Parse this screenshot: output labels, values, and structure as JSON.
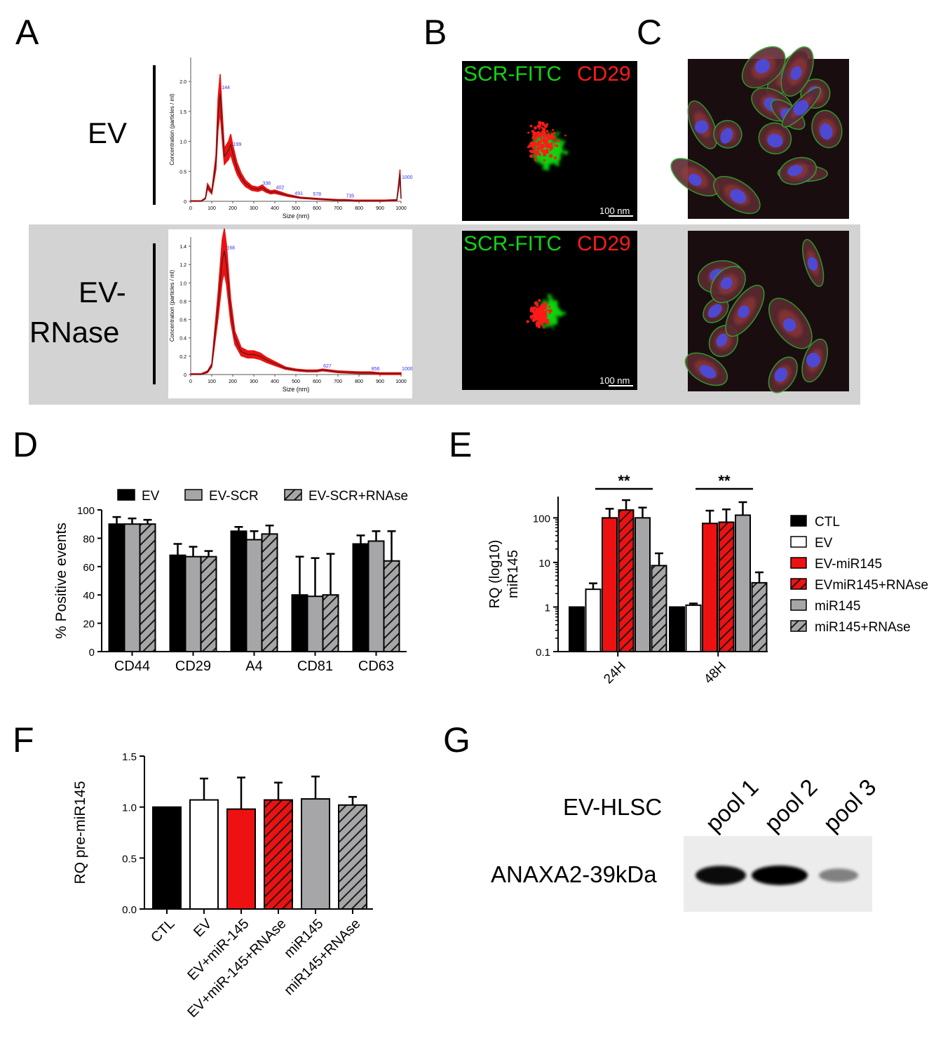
{
  "panel_letters": [
    "A",
    "B",
    "C",
    "D",
    "E",
    "F",
    "G"
  ],
  "panel_a": {
    "rows": [
      {
        "label_lines": [
          "EV"
        ]
      },
      {
        "label_lines": [
          "EV-",
          "RNase"
        ]
      }
    ],
    "micro_label_left": "SCR-FITC",
    "micro_label_right": "CD29",
    "scale_bar": "100 nm"
  },
  "colors": {
    "black": "#000000",
    "white": "#ffffff",
    "red": "#ee1111",
    "gray": "#a6a6a8",
    "panel_bg": "#d3d3d3",
    "fitc_green": "#12d312",
    "cd29_red": "#ff1a1a"
  },
  "panel_g": {
    "row_label": "EV-HLSC",
    "band_label": "ANAXA2-39kDa",
    "lanes": [
      "pool 1",
      "pool 2",
      "pool 3"
    ],
    "band_intensity": [
      0.95,
      1.0,
      0.45
    ]
  },
  "chart_data": [
    {
      "id": "A-EV",
      "type": "line",
      "xlabel": "Size (nm)",
      "ylabel": "Concentration (particles / ml)",
      "xlim": [
        0,
        1000
      ],
      "ylim": [
        0,
        2.4
      ],
      "xticks": [
        0,
        100,
        200,
        300,
        400,
        500,
        600,
        700,
        800,
        900,
        1000
      ],
      "yticks": [
        0,
        0.5,
        1.0,
        1.5,
        2.0
      ],
      "ytick_labels": [
        "0",
        "0.5",
        "1.0",
        "1.5",
        "2.0"
      ],
      "x": [
        0,
        50,
        70,
        80,
        100,
        120,
        130,
        140,
        150,
        160,
        180,
        190,
        200,
        220,
        240,
        260,
        290,
        320,
        340,
        360,
        380,
        400,
        430,
        460,
        490,
        520,
        560,
        600,
        650,
        700,
        735,
        780,
        850,
        920,
        980,
        990,
        995,
        1000
      ],
      "y": [
        0,
        0,
        0.05,
        0.25,
        0.15,
        0.65,
        1.45,
        1.8,
        1.25,
        0.75,
        0.85,
        0.95,
        0.8,
        0.55,
        0.4,
        0.3,
        0.22,
        0.2,
        0.23,
        0.18,
        0.15,
        0.16,
        0.13,
        0.1,
        0.08,
        0.06,
        0.05,
        0.04,
        0.03,
        0.02,
        0.02,
        0.01,
        0.01,
        0.01,
        0.02,
        0.3,
        0.45,
        0.05
      ],
      "peak_labels": [
        {
          "x": 144,
          "y": 1.85,
          "text": "144"
        },
        {
          "x": 199,
          "y": 0.9,
          "text": "199"
        },
        {
          "x": 338,
          "y": 0.25,
          "text": "338"
        },
        {
          "x": 402,
          "y": 0.18,
          "text": "402"
        },
        {
          "x": 491,
          "y": 0.08,
          "text": "491"
        },
        {
          "x": 578,
          "y": 0.07,
          "text": "578"
        },
        {
          "x": 735,
          "y": 0.04,
          "text": "735"
        },
        {
          "x": 1000,
          "y": 0.35,
          "text": "1000"
        }
      ]
    },
    {
      "id": "A-EV-RNase",
      "type": "line",
      "xlabel": "Size (nm)",
      "ylabel": "Concentration (particles / ml)",
      "xlim": [
        0,
        1000
      ],
      "ylim": [
        0,
        1.5
      ],
      "xticks": [
        0,
        100,
        200,
        300,
        400,
        500,
        600,
        700,
        800,
        900,
        1000
      ],
      "yticks": [
        0,
        0.2,
        0.4,
        0.6,
        0.8,
        1.0,
        1.2,
        1.4
      ],
      "ytick_labels": [
        "0",
        "0.2",
        "0.4",
        "0.6",
        "0.8",
        "1.0",
        "1.2",
        "1.4"
      ],
      "x": [
        0,
        50,
        80,
        100,
        130,
        150,
        160,
        170,
        190,
        210,
        240,
        270,
        300,
        330,
        360,
        400,
        450,
        500,
        550,
        600,
        627,
        700,
        800,
        856,
        900,
        950,
        1000
      ],
      "y": [
        0,
        0,
        0.03,
        0.1,
        0.75,
        1.25,
        1.35,
        1.2,
        0.7,
        0.4,
        0.25,
        0.22,
        0.22,
        0.2,
        0.16,
        0.12,
        0.07,
        0.05,
        0.04,
        0.04,
        0.05,
        0.03,
        0.02,
        0.02,
        0.01,
        0.01,
        0.01
      ],
      "peak_labels": [
        {
          "x": 168,
          "y": 1.35,
          "text": "168"
        },
        {
          "x": 627,
          "y": 0.06,
          "text": "627"
        },
        {
          "x": 856,
          "y": 0.03,
          "text": "856"
        },
        {
          "x": 1000,
          "y": 0.03,
          "text": "1000"
        }
      ]
    },
    {
      "id": "D",
      "type": "bar",
      "ylabel": "% Positive events",
      "categories": [
        "CD44",
        "CD29",
        "A4",
        "CD81",
        "CD63"
      ],
      "ylim": [
        0,
        100
      ],
      "yticks": [
        0,
        20,
        40,
        60,
        80,
        100
      ],
      "legend_placement": "top",
      "series": [
        {
          "name": "EV",
          "fill": "black",
          "values": [
            90,
            68,
            85,
            40,
            76
          ],
          "errors": [
            5,
            8,
            3,
            27,
            6
          ]
        },
        {
          "name": "EV-SCR",
          "fill": "gray",
          "values": [
            90,
            67,
            79,
            39,
            78
          ],
          "errors": [
            4,
            7,
            6,
            27,
            7
          ]
        },
        {
          "name": "EV-SCR+RNAse",
          "fill": "hatch-gray",
          "values": [
            90,
            67,
            83,
            40,
            64
          ],
          "errors": [
            3,
            4,
            6,
            29,
            21
          ]
        }
      ]
    },
    {
      "id": "E",
      "type": "bar",
      "ylabel": "RQ (log10) miR145",
      "ylabel_lines": [
        "RQ (log10)",
        "miR145"
      ],
      "categories": [
        "24H",
        "48H"
      ],
      "yscale": "log",
      "ylim": [
        0.1,
        300
      ],
      "yticks": [
        0.1,
        1,
        10,
        100
      ],
      "ytick_labels": [
        "0.1",
        "1",
        "10",
        "100"
      ],
      "legend_placement": "right",
      "significance": [
        {
          "category": "24H",
          "text": "**"
        },
        {
          "category": "48H",
          "text": "**"
        }
      ],
      "series": [
        {
          "name": "CTL",
          "fill": "black",
          "values": [
            1,
            1
          ],
          "errors": [
            0,
            0
          ]
        },
        {
          "name": "EV",
          "fill": "white",
          "values": [
            2.5,
            1.1
          ],
          "errors": [
            0.9,
            0.1
          ]
        },
        {
          "name": "EV-miR145",
          "fill": "red",
          "values": [
            100,
            75
          ],
          "errors": [
            60,
            70
          ]
        },
        {
          "name": "EVmiR145+RNAse",
          "fill": "hatch-red",
          "values": [
            150,
            80
          ],
          "errors": [
            100,
            75
          ]
        },
        {
          "name": "miR145",
          "fill": "gray",
          "values": [
            100,
            115
          ],
          "errors": [
            70,
            110
          ]
        },
        {
          "name": "miR145+RNAse",
          "fill": "hatch-gray",
          "values": [
            8.5,
            3.5
          ],
          "errors": [
            7.5,
            2.5
          ]
        }
      ]
    },
    {
      "id": "F",
      "type": "bar",
      "ylabel": "RQ pre-miR145",
      "categories": [
        "CTL",
        "EV",
        "EV+miR-145",
        "EV+miR-145+RNAse",
        "miR145",
        "miR145+RNAse"
      ],
      "ylim": [
        0,
        1.5
      ],
      "yticks": [
        0,
        0.5,
        1.0,
        1.5
      ],
      "ytick_labels": [
        "0.0",
        "0.5",
        "1.0",
        "1.5"
      ],
      "fills": [
        "black",
        "white",
        "red",
        "hatch-red",
        "gray",
        "hatch-gray"
      ],
      "values": [
        1.0,
        1.07,
        0.98,
        1.07,
        1.08,
        1.02
      ],
      "errors": [
        0,
        0.21,
        0.31,
        0.17,
        0.22,
        0.08
      ]
    }
  ]
}
